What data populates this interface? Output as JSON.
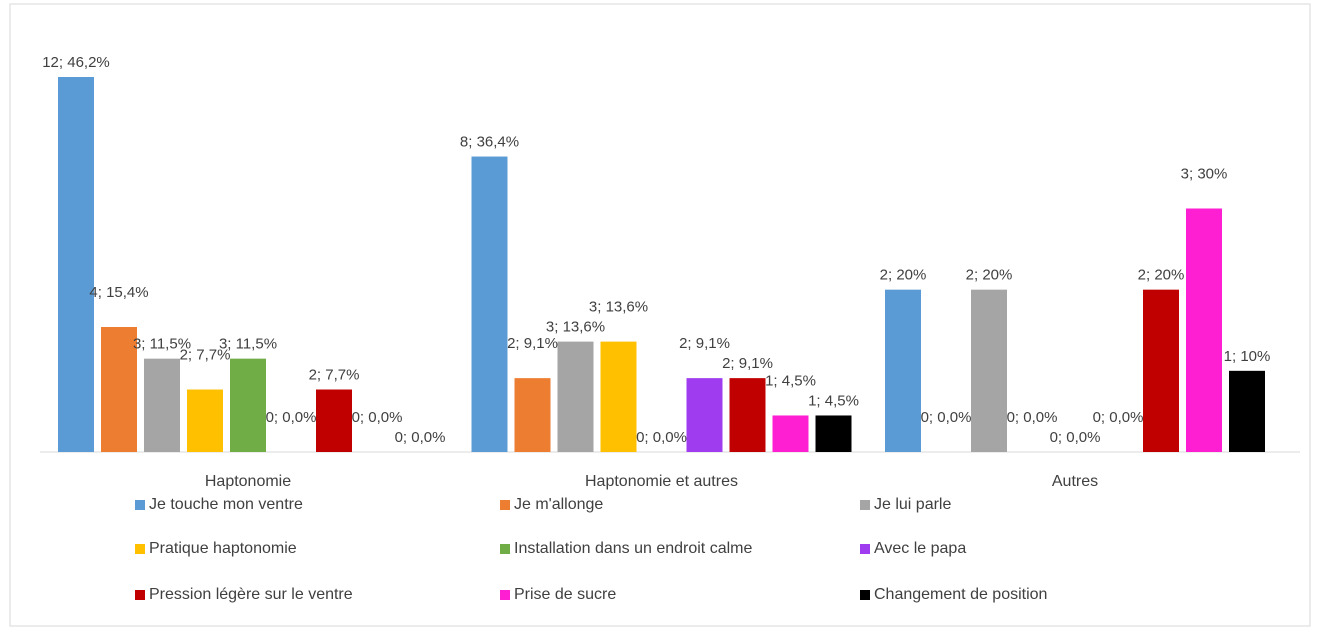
{
  "chart_data": {
    "type": "bar",
    "categories": [
      "Haptonomie",
      "Haptonomie et autres",
      "Autres"
    ],
    "series": [
      {
        "name": "Je touche mon ventre",
        "color": "#5b9bd5",
        "values": [
          46.2,
          36.4,
          20
        ],
        "value_labels": [
          "12; 46,2%",
          "8; 36,4%",
          "2; 20%"
        ]
      },
      {
        "name": "Je m'allonge",
        "color": "#ed7d31",
        "values": [
          15.4,
          9.1,
          0
        ],
        "value_labels": [
          "4; 15,4%",
          "2; 9,1%",
          "0; 0,0%"
        ]
      },
      {
        "name": "Je lui parle",
        "color": "#a5a5a5",
        "values": [
          11.5,
          13.6,
          20
        ],
        "value_labels": [
          "3; 11,5%",
          "3; 13,6%",
          "2; 20%"
        ]
      },
      {
        "name": "Pratique haptonomie",
        "color": "#ffc000",
        "values": [
          7.7,
          13.6,
          0
        ],
        "value_labels": [
          "2; 7,7%",
          "3; 13,6%",
          "0; 0,0%"
        ]
      },
      {
        "name": "Installation dans un endroit calme",
        "color": "#70ad47",
        "values": [
          11.5,
          0,
          0
        ],
        "value_labels": [
          "3; 11,5%",
          "0; 0,0%",
          "0; 0,0%"
        ]
      },
      {
        "name": "Avec le papa",
        "color": "#a03cf0",
        "values": [
          0,
          9.1,
          0
        ],
        "value_labels": [
          "0; 0,0%",
          "2; 9,1%",
          "0; 0,0%"
        ]
      },
      {
        "name": "Pression légère sur le ventre",
        "color": "#c00000",
        "values": [
          7.7,
          9.1,
          20
        ],
        "value_labels": [
          "2; 7,7%",
          "2; 9,1%",
          "2; 20%"
        ]
      },
      {
        "name": "Prise de sucre",
        "color": "#ff1fd2",
        "values": [
          0,
          4.5,
          30
        ],
        "value_labels": [
          "0; 0,0%",
          "1; 4,5%",
          "3; 30%"
        ]
      },
      {
        "name": "Changement de position",
        "color": "#000000",
        "values": [
          0,
          4.5,
          10
        ],
        "value_labels": [
          "0; 0,0%",
          "1; 4,5%",
          "1; 10%"
        ]
      }
    ]
  }
}
